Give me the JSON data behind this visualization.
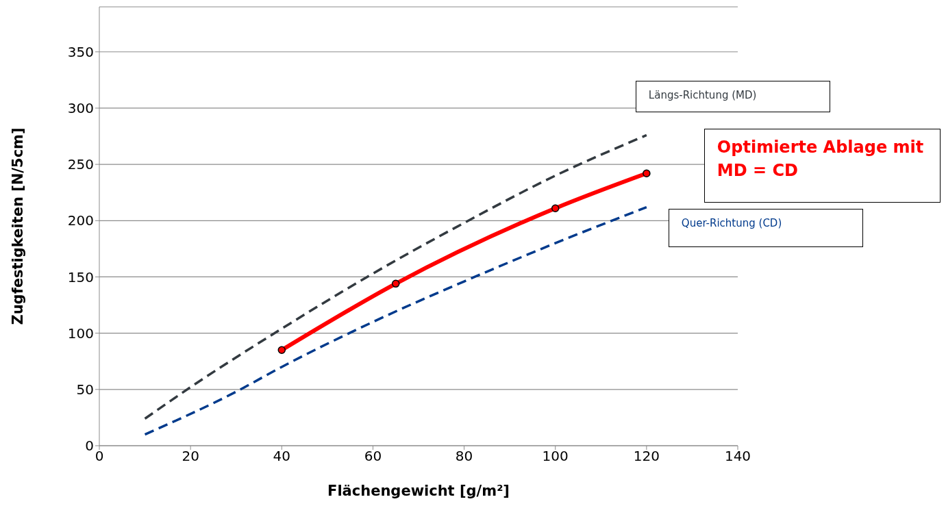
{
  "chart_data": {
    "type": "line",
    "xlabel": "Flächengewicht [g/m²]",
    "ylabel": "Zugfestigkeiten [N/5cm]",
    "xlim": [
      0,
      140
    ],
    "xticks": [
      0,
      20,
      40,
      60,
      80,
      100,
      120,
      140
    ],
    "ylim": [
      0,
      390
    ],
    "yticks": [
      0,
      50,
      100,
      150,
      200,
      250,
      300,
      350
    ],
    "grid": "y",
    "series": [
      {
        "name": "Längs-Richtung (MD)",
        "color": "#333a40",
        "line_style": "dashed",
        "marker": "none",
        "x": [
          10,
          20,
          40,
          60,
          80,
          100,
          120
        ],
        "values": [
          24,
          52,
          104,
          153,
          198,
          240,
          276
        ]
      },
      {
        "name": "Quer-Richtung (CD)",
        "color": "#003a8c",
        "line_style": "dashed",
        "marker": "none",
        "x": [
          10,
          30,
          40,
          60,
          80,
          100,
          120
        ],
        "values": [
          10,
          48,
          70,
          110,
          146,
          180,
          212
        ]
      },
      {
        "name": "Optimierte Ablage mit MD = CD",
        "color": "#ff0000",
        "line_style": "solid",
        "marker": "circle",
        "x": [
          40,
          65,
          100,
          120
        ],
        "values": [
          85,
          144,
          211,
          242
        ]
      }
    ]
  }
}
